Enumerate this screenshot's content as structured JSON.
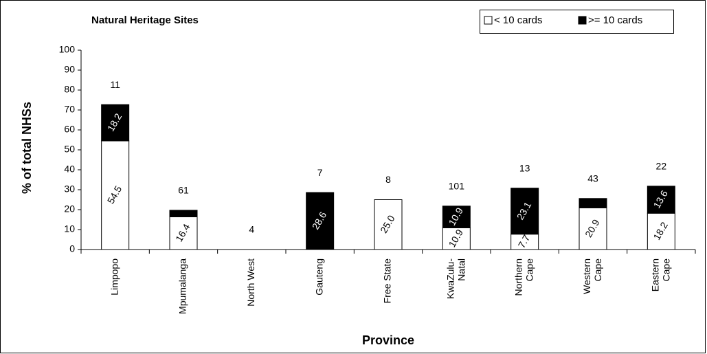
{
  "chart_data": {
    "type": "stacked_bar",
    "title": "Natural Heritage Sites",
    "x_label": "Province",
    "y_label": "% of total NHSs",
    "categories": [
      "Limpopo",
      "Mpumalanga",
      "North West",
      "Gauteng",
      "Free State",
      "KwaZulu-Natal",
      "Northern Cape",
      "Western Cape",
      "Eastern Cape"
    ],
    "series": [
      {
        "name": "< 10 cards",
        "color": "#ffffff",
        "values": [
          54.5,
          16.4,
          null,
          null,
          25.0,
          10.9,
          7.7,
          20.9,
          18.2
        ],
        "value_labels": [
          "54.5",
          "16.4",
          null,
          null,
          "25.0",
          "10.9",
          "7.7",
          "20.9",
          "18.2"
        ]
      },
      {
        "name": ">= 10 cards",
        "color": "#000000",
        "values": [
          18.2,
          3.3,
          null,
          28.6,
          null,
          10.9,
          23.1,
          4.7,
          13.6
        ],
        "value_labels": [
          "18.2",
          null,
          null,
          "28.6",
          null,
          "10.9",
          "23.1",
          null,
          "13.6"
        ]
      }
    ],
    "counts": [
      11,
      61,
      4,
      7,
      8,
      101,
      13,
      43,
      22
    ],
    "ylim": [
      0,
      100
    ],
    "yticks": [
      0,
      10,
      20,
      30,
      40,
      50,
      60,
      70,
      80,
      90,
      100
    ],
    "legend": "top-right"
  }
}
